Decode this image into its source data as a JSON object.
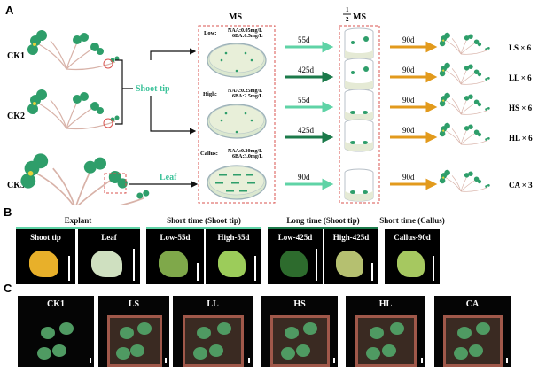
{
  "panels": {
    "a": "A",
    "b": "B",
    "c": "C"
  },
  "panel_a": {
    "controls": [
      "CK1",
      "CK2",
      "CK3"
    ],
    "shoot_tip_label": "Shoot tip",
    "leaf_label": "Leaf",
    "ms_title": "MS",
    "half_ms_title": {
      "numerator": "1",
      "denominator": "2",
      "suffix": "MS"
    },
    "media": [
      {
        "level": "Low:",
        "naa": "NAA:0.05mg/L",
        "ba": "6BA:0.5mg/L"
      },
      {
        "level": "High:",
        "naa": "NAA:0.25mg/L",
        "ba": "6BA:2.5mg/L"
      },
      {
        "level": "Callus:",
        "naa": "NAA:0.30mg/L",
        "ba": "6BA:3.0mg/L"
      }
    ],
    "culture_arrows": [
      "55d",
      "425d",
      "55d",
      "425d",
      "90d"
    ],
    "transplant_arrows": [
      "90d",
      "90d",
      "90d",
      "90d",
      "90d"
    ],
    "outcomes": [
      "LS × 6",
      "LL × 6",
      "HS × 6",
      "HL × 6",
      "CA × 3"
    ],
    "colors": {
      "light_teal": "#5fd3a6",
      "dark_green": "#1b7a4a",
      "orange": "#e29a1c",
      "dashed_red": "#d9534f",
      "leaf_green": "#2e9e6a"
    }
  },
  "panel_b": {
    "groups": [
      {
        "title": "Explant",
        "items": [
          "Shoot tip",
          "Leaf"
        ]
      },
      {
        "title": "Short time (Shoot tip)",
        "items": [
          "Low-55d",
          "High-55d"
        ]
      },
      {
        "title": "Long time (Shoot tip)",
        "items": [
          "Low-425d",
          "High-425d"
        ]
      },
      {
        "title": "Short time (Callus)",
        "items": [
          "Callus-90d"
        ]
      }
    ]
  },
  "panel_c": {
    "photos": [
      "CK1",
      "LS",
      "LL",
      "HS",
      "HL",
      "CA"
    ]
  }
}
